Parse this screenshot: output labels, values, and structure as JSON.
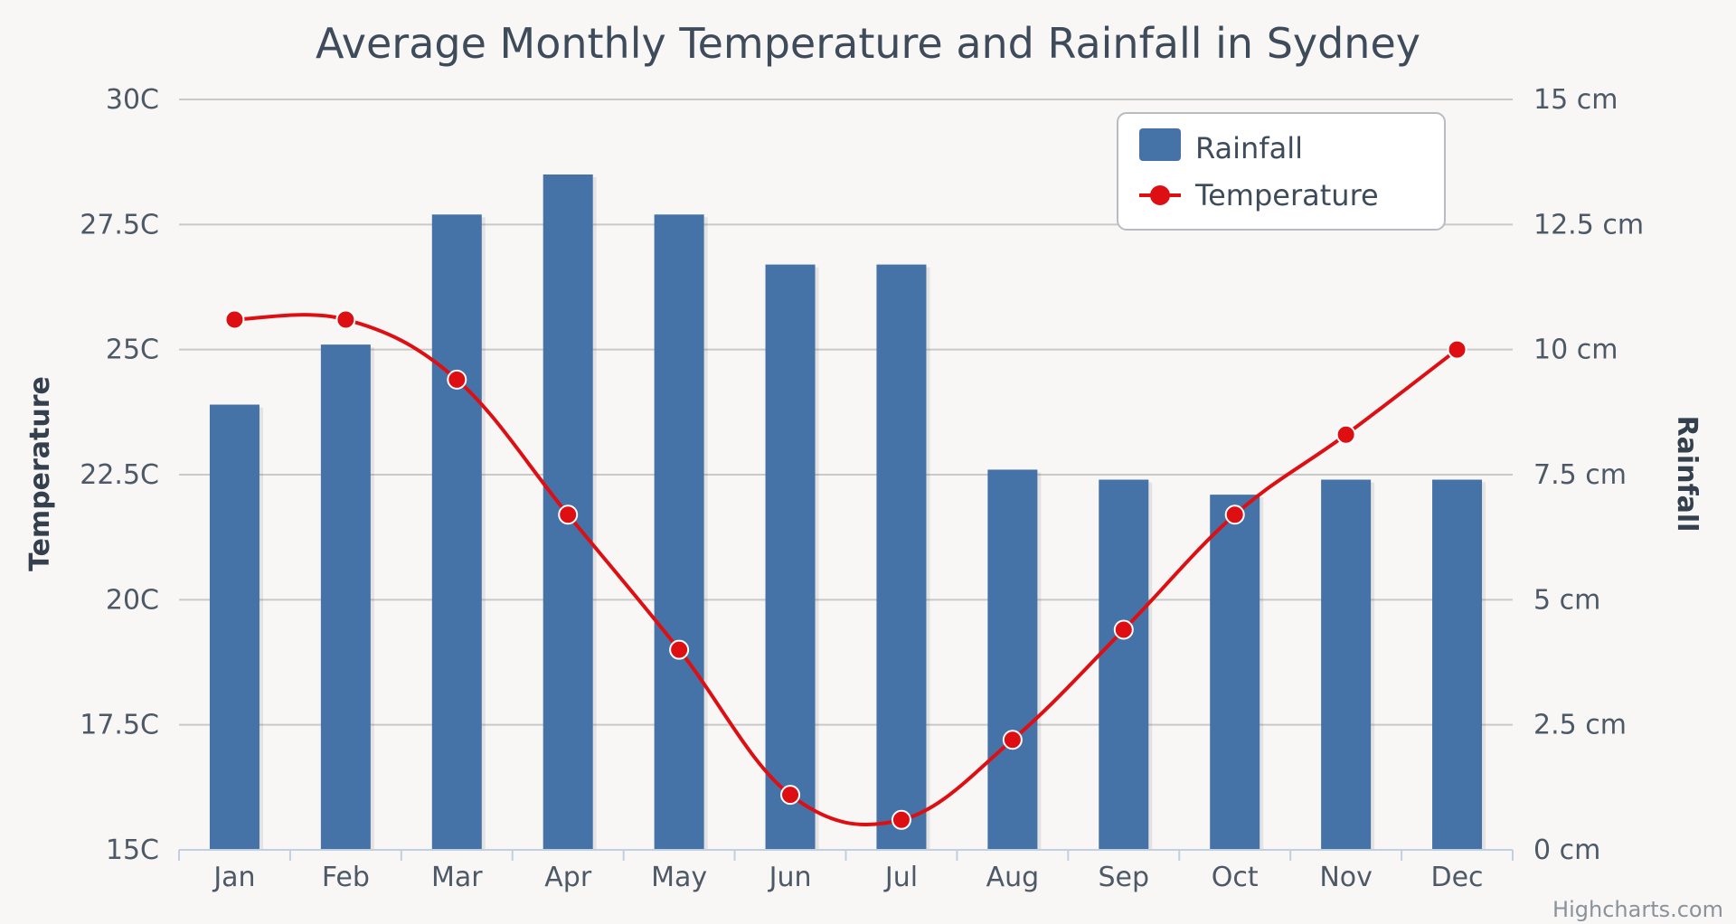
{
  "chart_data": {
    "type": "bar",
    "title": "Average Monthly Temperature and Rainfall in Sydney",
    "categories": [
      "Jan",
      "Feb",
      "Mar",
      "Apr",
      "May",
      "Jun",
      "Jul",
      "Aug",
      "Sep",
      "Oct",
      "Nov",
      "Dec"
    ],
    "series": [
      {
        "name": "Rainfall",
        "type": "bar",
        "axis": "right",
        "color": "#4572a7",
        "values": [
          8.9,
          10.1,
          12.7,
          13.5,
          12.7,
          11.7,
          11.7,
          7.6,
          7.4,
          7.1,
          7.4,
          7.4
        ]
      },
      {
        "name": "Temperature",
        "type": "line",
        "axis": "left",
        "color": "#dd0f13",
        "values": [
          25.6,
          25.6,
          24.4,
          21.7,
          19.0,
          16.1,
          15.6,
          17.2,
          19.4,
          21.7,
          23.3,
          25.0
        ]
      }
    ],
    "y_left": {
      "title": "Temperature",
      "min": 15,
      "max": 30,
      "tick_labels": [
        "15C",
        "17.5C",
        "20C",
        "22.5C",
        "25C",
        "27.5C",
        "30C"
      ]
    },
    "y_right": {
      "title": "Rainfall",
      "min": 0,
      "max": 15,
      "tick_labels": [
        "0 cm",
        "2.5 cm",
        "5 cm",
        "7.5 cm",
        "10 cm",
        "12.5 cm",
        "15 cm"
      ]
    },
    "grid": true,
    "legend": {
      "position": "top-right",
      "items": [
        "Rainfall",
        "Temperature"
      ]
    },
    "credit": "Highcharts.com"
  }
}
